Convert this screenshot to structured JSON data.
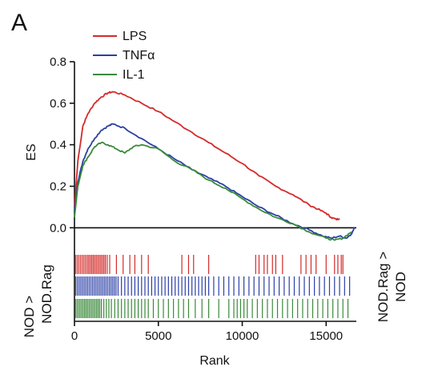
{
  "panel_label": "A",
  "chart_data": {
    "type": "line",
    "ylabel": "ES",
    "xlabel": "Rank",
    "xlim": [
      0,
      16800
    ],
    "ylim": [
      -0.08,
      0.8
    ],
    "x_ticks": [
      0,
      5000,
      10000,
      15000
    ],
    "y_ticks": [
      0.0,
      0.2,
      0.4,
      0.6,
      0.8
    ],
    "x_tick_labels": [
      "0",
      "5000",
      "10000",
      "15000"
    ],
    "y_tick_labels": [
      "0.0",
      "0.2",
      "0.4",
      "0.6",
      "0.8"
    ],
    "legend_position": "top-left",
    "left_annotation": [
      "NOD >",
      "NOD.Rag"
    ],
    "right_annotation": [
      "NOD.Rag >",
      "NOD"
    ],
    "series": [
      {
        "name": "LPS",
        "color": "#d42a2a",
        "x": [
          0,
          200,
          500,
          800,
          1200,
          1600,
          2000,
          2300,
          3000,
          4000,
          5000,
          6000,
          7000,
          8000,
          9000,
          10000,
          11000,
          12000,
          13000,
          14000,
          14500,
          15000,
          15300,
          15600,
          15800
        ],
        "y": [
          0.1,
          0.32,
          0.49,
          0.55,
          0.6,
          0.63,
          0.65,
          0.655,
          0.64,
          0.6,
          0.56,
          0.51,
          0.46,
          0.41,
          0.36,
          0.31,
          0.25,
          0.2,
          0.16,
          0.11,
          0.09,
          0.07,
          0.05,
          0.04,
          0.045
        ]
      },
      {
        "name": "TNFα",
        "color": "#2b3fa6",
        "x": [
          0,
          200,
          500,
          800,
          1200,
          1600,
          2000,
          2300,
          3000,
          4000,
          5000,
          6000,
          7000,
          8000,
          9000,
          10000,
          11000,
          12000,
          13000,
          14000,
          14800,
          15300,
          15800,
          16200,
          16500,
          16700
        ],
        "y": [
          0.08,
          0.22,
          0.32,
          0.38,
          0.43,
          0.47,
          0.49,
          0.5,
          0.48,
          0.43,
          0.38,
          0.33,
          0.28,
          0.24,
          0.2,
          0.15,
          0.1,
          0.06,
          0.02,
          -0.01,
          -0.04,
          -0.05,
          -0.04,
          -0.05,
          -0.03,
          0.0
        ]
      },
      {
        "name": "IL-1",
        "color": "#3a8a3a",
        "x": [
          0,
          200,
          500,
          800,
          1200,
          1600,
          2000,
          2500,
          3000,
          3500,
          4000,
          5000,
          6000,
          7000,
          8000,
          9000,
          10000,
          11000,
          12000,
          13000,
          14000,
          15000,
          15500,
          16000,
          16500
        ],
        "y": [
          0.05,
          0.2,
          0.3,
          0.34,
          0.39,
          0.41,
          0.4,
          0.38,
          0.36,
          0.39,
          0.4,
          0.38,
          0.32,
          0.28,
          0.23,
          0.19,
          0.14,
          0.09,
          0.05,
          0.02,
          -0.02,
          -0.05,
          -0.06,
          -0.05,
          -0.02
        ]
      }
    ],
    "barcodes": [
      {
        "name": "LPS",
        "color": "#d42a2a",
        "ranks": [
          60,
          160,
          260,
          360,
          460,
          560,
          660,
          760,
          850,
          940,
          1030,
          1120,
          1210,
          1300,
          1390,
          1480,
          1570,
          1660,
          1750,
          1840,
          1950,
          2100,
          2500,
          2900,
          3300,
          3600,
          4000,
          4400,
          6400,
          6800,
          7100,
          8000,
          10800,
          11000,
          11300,
          11500,
          11800,
          12000,
          12400,
          13500,
          13800,
          14100,
          14400,
          15000,
          15500,
          15700,
          15900,
          16000
        ]
      },
      {
        "name": "TNFα",
        "color": "#2b3fa6",
        "ranks": [
          80,
          180,
          280,
          380,
          480,
          580,
          680,
          780,
          880,
          980,
          1080,
          1180,
          1280,
          1380,
          1480,
          1580,
          1680,
          1780,
          1880,
          1980,
          2080,
          2180,
          2280,
          2380,
          2480,
          2600,
          2800,
          3000,
          3200,
          3400,
          3600,
          3800,
          4000,
          4200,
          4400,
          4600,
          4800,
          5000,
          5200,
          5400,
          5600,
          5800,
          6000,
          6200,
          6400,
          6600,
          6800,
          7000,
          7200,
          7400,
          7600,
          7800,
          8000,
          8300,
          8600,
          8900,
          9200,
          9500,
          9800,
          10100,
          10400,
          10700,
          11000,
          11300,
          11600,
          11900,
          12200,
          12500,
          12800,
          13100,
          13400,
          13700,
          14000,
          14300,
          14600,
          14900,
          15200,
          15500,
          15800,
          16100,
          16400
        ]
      },
      {
        "name": "IL-1",
        "color": "#3a8a3a",
        "ranks": [
          60,
          150,
          240,
          330,
          420,
          510,
          600,
          690,
          780,
          870,
          960,
          1050,
          1140,
          1230,
          1320,
          1410,
          1500,
          1600,
          1750,
          1900,
          2050,
          2200,
          2400,
          2600,
          2800,
          3000,
          3200,
          3400,
          3600,
          3800,
          4000,
          4200,
          4400,
          4700,
          5000,
          5300,
          5600,
          5900,
          6200,
          6500,
          6800,
          7200,
          7600,
          8000,
          8600,
          9200,
          9500,
          9700,
          9900,
          10100,
          10300,
          10600,
          10900,
          11200,
          11500,
          11800,
          12100,
          12400,
          12700,
          13000,
          13300,
          13600,
          13900,
          14200,
          14500,
          14800,
          15100,
          15400,
          15700,
          16000,
          16300
        ]
      }
    ]
  }
}
